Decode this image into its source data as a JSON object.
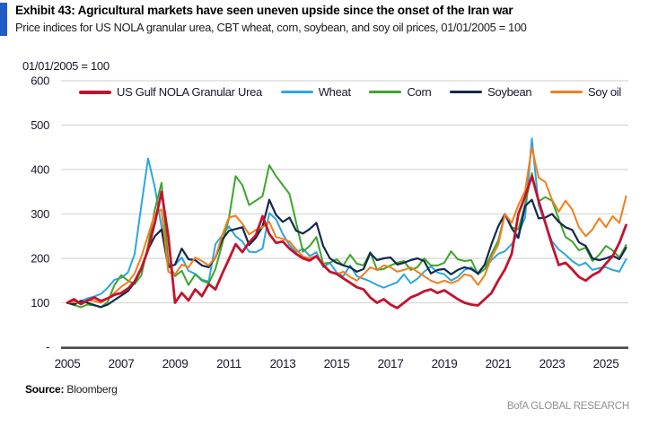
{
  "header": {
    "title": "Exhibit 43: Agricultural markets have seen uneven upside since the onset of the Iran war",
    "subtitle": "Price indices for US NOLA granular urea, CBT wheat, corn, soybean, and soy oil prices, 01/01/2005 = 100"
  },
  "footer": {
    "source_label": "Source:",
    "source_value": "Bloomberg",
    "branding": "BofA GLOBAL RESEARCH"
  },
  "colors": {
    "accent_bar": "#1f5cc8",
    "gridline": "#d8d8d8",
    "axis_line": "#4a4a4a",
    "tick_text": "#17172e",
    "urea_red": "#c4122e",
    "wheat_blue": "#2ba7e0",
    "corn_green": "#3ca52b",
    "soybean_navy": "#15294e",
    "soyoil_orange": "#f47d1a"
  },
  "legend": [
    {
      "label": "US Gulf NOLA Granular Urea",
      "color": "#c4122e",
      "swatch_thickness": 4
    },
    {
      "label": "Wheat",
      "color": "#2ba7e0",
      "swatch_thickness": 2.6
    },
    {
      "label": "Corn",
      "color": "#3ca52b",
      "swatch_thickness": 2.6
    },
    {
      "label": "Soybean",
      "color": "#15294e",
      "swatch_thickness": 2.6
    },
    {
      "label": "Soy oil",
      "color": "#f47d1a",
      "swatch_thickness": 2.6
    }
  ],
  "chart_data": {
    "type": "line",
    "axis_note": "01/01/2005 = 100",
    "ylim": [
      0,
      600
    ],
    "y_ticks": [
      600,
      500,
      400,
      300,
      200,
      100
    ],
    "zero_tick_label": "-",
    "x_ticks": [
      2005,
      2007,
      2009,
      2011,
      2013,
      2015,
      2017,
      2019,
      2021,
      2023,
      2025
    ],
    "x_start": 2005.0,
    "x_step": 0.25,
    "grid": "horizontal",
    "legend_position": "top-inside",
    "series": [
      {
        "name": "US Gulf NOLA Granular Urea",
        "color": "#c4122e",
        "stroke_width": 2.8,
        "values": [
          100,
          108,
          97,
          105,
          112,
          104,
          110,
          118,
          122,
          132,
          148,
          178,
          220,
          280,
          350,
          250,
          100,
          122,
          105,
          130,
          115,
          142,
          130,
          165,
          198,
          232,
          214,
          236,
          252,
          295,
          255,
          235,
          238,
          222,
          210,
          200,
          195,
          205,
          185,
          170,
          165,
          155,
          145,
          135,
          130,
          112,
          100,
          108,
          96,
          88,
          100,
          112,
          118,
          126,
          130,
          122,
          128,
          118,
          108,
          100,
          96,
          94,
          108,
          122,
          150,
          175,
          210,
          300,
          340,
          385,
          330,
          280,
          230,
          185,
          190,
          175,
          158,
          150,
          162,
          170,
          188,
          205,
          235,
          275
        ]
      },
      {
        "name": "Wheat",
        "color": "#2ba7e0",
        "stroke_width": 2,
        "values": [
          100,
          97,
          104,
          110,
          114,
          120,
          134,
          152,
          156,
          168,
          210,
          320,
          425,
          360,
          270,
          185,
          185,
          202,
          172,
          165,
          152,
          148,
          232,
          252,
          272,
          250,
          238,
          215,
          214,
          222,
          302,
          288,
          255,
          230,
          214,
          222,
          205,
          214,
          180,
          190,
          168,
          160,
          184,
          160,
          154,
          148,
          140,
          134,
          140,
          146,
          164,
          144,
          154,
          170,
          182,
          168,
          164,
          150,
          158,
          174,
          180,
          164,
          176,
          196,
          210,
          216,
          232,
          256,
          292,
          470,
          320,
          278,
          238,
          220,
          208,
          194,
          184,
          190,
          174,
          178,
          180,
          174,
          170,
          198
        ]
      },
      {
        "name": "Corn",
        "color": "#3ca52b",
        "stroke_width": 2,
        "values": [
          100,
          95,
          90,
          96,
          94,
          90,
          102,
          140,
          162,
          150,
          142,
          162,
          230,
          310,
          370,
          190,
          160,
          172,
          140,
          164,
          150,
          144,
          176,
          232,
          290,
          385,
          365,
          320,
          330,
          340,
          410,
          385,
          365,
          345,
          280,
          215,
          228,
          248,
          188,
          190,
          198,
          184,
          208,
          188,
          184,
          214,
          174,
          176,
          184,
          190,
          194,
          174,
          180,
          200,
          184,
          184,
          190,
          216,
          198,
          194,
          196,
          164,
          176,
          210,
          240,
          300,
          270,
          265,
          322,
          392,
          328,
          338,
          330,
          288,
          248,
          238,
          218,
          224,
          194,
          208,
          228,
          218,
          202,
          230
        ]
      },
      {
        "name": "Soybean",
        "color": "#15294e",
        "stroke_width": 2.2,
        "values": [
          100,
          96,
          104,
          100,
          95,
          90,
          96,
          106,
          116,
          126,
          146,
          176,
          220,
          250,
          265,
          180,
          186,
          222,
          198,
          196,
          184,
          180,
          202,
          242,
          262,
          266,
          270,
          230,
          246,
          272,
          332,
          298,
          282,
          292,
          262,
          256,
          266,
          280,
          228,
          200,
          190,
          184,
          180,
          170,
          176,
          212,
          196,
          200,
          202,
          186,
          190,
          196,
          200,
          194,
          166,
          174,
          176,
          164,
          174,
          180,
          176,
          166,
          186,
          232,
          272,
          300,
          268,
          246,
          318,
          332,
          290,
          292,
          300,
          282,
          270,
          264,
          236,
          228,
          200,
          196,
          200,
          206,
          198,
          224
        ]
      },
      {
        "name": "Soy oil",
        "color": "#f47d1a",
        "stroke_width": 2,
        "values": [
          100,
          102,
          98,
          106,
          104,
          100,
          110,
          122,
          136,
          146,
          166,
          204,
          252,
          300,
          310,
          170,
          164,
          186,
          180,
          202,
          194,
          184,
          202,
          252,
          292,
          296,
          278,
          254,
          264,
          270,
          282,
          248,
          244,
          238,
          220,
          204,
          200,
          206,
          188,
          170,
          164,
          170,
          158,
          150,
          164,
          180,
          174,
          184,
          180,
          170,
          174,
          180,
          170,
          160,
          150,
          144,
          150,
          144,
          150,
          164,
          160,
          140,
          162,
          202,
          230,
          300,
          280,
          320,
          352,
          450,
          382,
          372,
          332,
          305,
          330,
          310,
          270,
          250,
          265,
          290,
          270,
          295,
          280,
          340
        ]
      }
    ]
  }
}
